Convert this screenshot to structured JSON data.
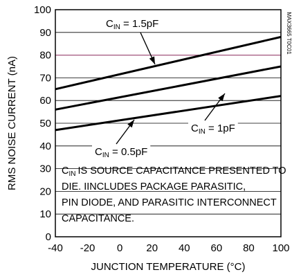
{
  "chart_data": {
    "type": "line",
    "title": "",
    "code": "MAX3665 T0C01",
    "xlabel": "JUNCTION TEMPERATURE (°C)",
    "ylabel": "RMS NOISE CURRENT (nA)",
    "xlim": [
      -40,
      100
    ],
    "ylim": [
      0,
      100
    ],
    "xticks": [
      -40,
      -20,
      0,
      20,
      40,
      60,
      80,
      100
    ],
    "yticks": [
      0,
      10,
      20,
      30,
      40,
      50,
      60,
      70,
      80,
      90,
      100
    ],
    "grid": true,
    "highlight_gridline": {
      "y": 80,
      "color": "#a0527a"
    },
    "series": [
      {
        "name": "CIN = 1.5pF",
        "x": [
          -40,
          100
        ],
        "y": [
          65,
          88
        ]
      },
      {
        "name": "CIN = 1pF",
        "x": [
          -40,
          100
        ],
        "y": [
          56,
          75
        ]
      },
      {
        "name": "CIN = 0.5pF",
        "x": [
          -40,
          100
        ],
        "y": [
          47,
          62
        ]
      }
    ],
    "annotations": [
      {
        "main": "C",
        "sub": "IN",
        "rest": " = 1.5pF"
      },
      {
        "main": "C",
        "sub": "IN",
        "rest": " = 1pF"
      },
      {
        "main": "C",
        "sub": "IN",
        "rest": " = 0.5pF"
      }
    ],
    "note": {
      "lines": [
        "IS SOURCE CAPACITANCE PRESENTED TO",
        "DIE. IINCLUDES PACKAGE PARASITIC,",
        "PIN DIODE, AND PARASITIC INTERCONNECT",
        "CAPACITANCE."
      ],
      "first_main": "C",
      "first_sub": "IN"
    }
  }
}
